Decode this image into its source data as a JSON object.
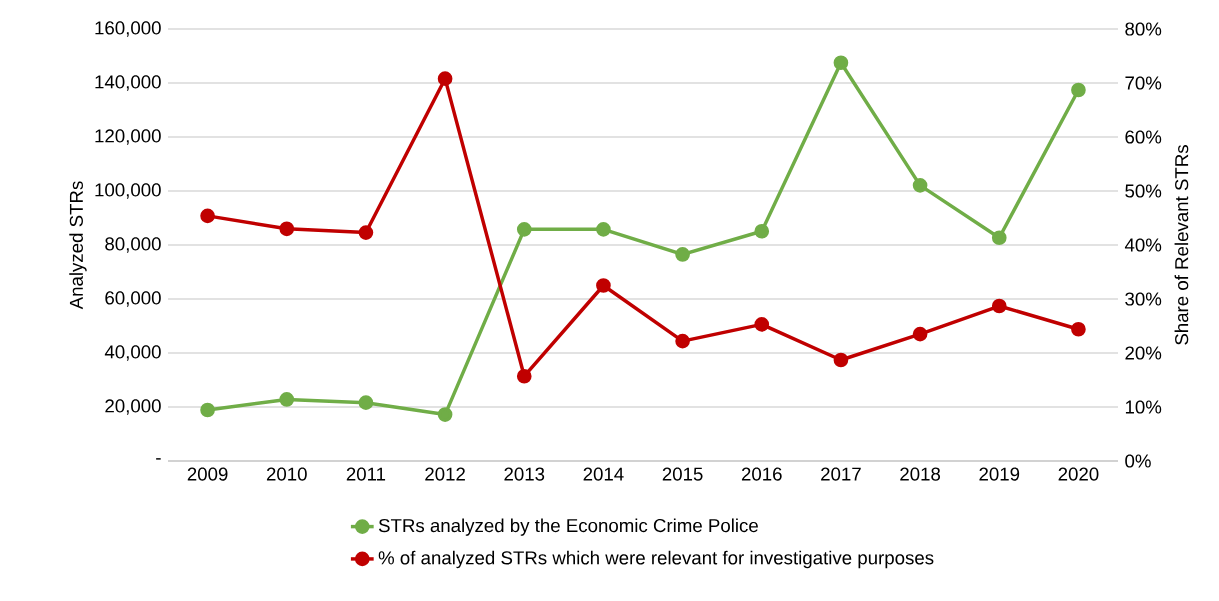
{
  "chart_data": {
    "type": "line",
    "ylabel": "Analyzed STRs",
    "y2label": "Share of Relevant STRs",
    "categories": [
      "2009",
      "2010",
      "2011",
      "2012",
      "2013",
      "2014",
      "2015",
      "2016",
      "2017",
      "2018",
      "2019",
      "2020"
    ],
    "series": [
      {
        "name": "STRs analyzed by the Economic Crime Police",
        "color": "#70ad47",
        "values": [
          18900,
          22800,
          21600,
          17200,
          85800,
          85800,
          76500,
          85100,
          147500,
          102100,
          82700,
          137400
        ]
      },
      {
        "name": "% of analyzed STRs which were relevant for investigative purposes",
        "color": "#c00000",
        "axis": "y2",
        "values": [
          45.4,
          43.0,
          42.3,
          70.8,
          15.7,
          32.5,
          22.2,
          25.3,
          18.7,
          23.5,
          28.7,
          24.4
        ]
      }
    ],
    "ylim": [
      0,
      160000
    ],
    "yticks": [
      {
        "value": 0,
        "label": "-"
      },
      {
        "value": 20000,
        "label": "20,000"
      },
      {
        "value": 40000,
        "label": "40,000"
      },
      {
        "value": 60000,
        "label": "60,000"
      },
      {
        "value": 80000,
        "label": "80,000"
      },
      {
        "value": 100000,
        "label": "100,000"
      },
      {
        "value": 120000,
        "label": "120,000"
      },
      {
        "value": 140000,
        "label": "140,000"
      },
      {
        "value": 160000,
        "label": "160,000"
      }
    ],
    "y2lim": [
      0,
      80
    ],
    "y2ticks": [
      {
        "value": 0,
        "label": "0%"
      },
      {
        "value": 10,
        "label": "10%"
      },
      {
        "value": 20,
        "label": "20%"
      },
      {
        "value": 30,
        "label": "30%"
      },
      {
        "value": 40,
        "label": "40%"
      },
      {
        "value": 50,
        "label": "50%"
      },
      {
        "value": 60,
        "label": "60%"
      },
      {
        "value": 70,
        "label": "70%"
      },
      {
        "value": 80,
        "label": "80%"
      }
    ],
    "grid": "y",
    "legend": "bottom",
    "marker": "circle",
    "line_style": "solid"
  }
}
